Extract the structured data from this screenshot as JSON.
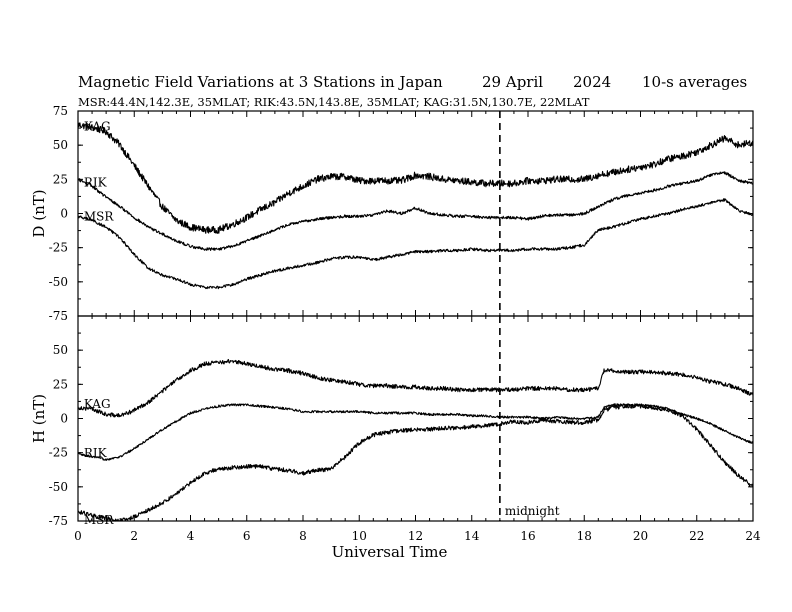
{
  "title": {
    "main": "Magnetic Field Variations at 3 Stations in Japan",
    "date": "29  April",
    "year": "2024",
    "averaging": "10-s averages"
  },
  "subtitle": "MSR:44.4N,142.3E, 35MLAT;  RIK:43.5N,143.8E, 35MLAT;  KAG:31.5N,130.7E, 22MLAT",
  "colors": {
    "line": "#000000",
    "frame": "#000000"
  },
  "chart_data": [
    {
      "type": "line",
      "panel": "top",
      "ylabel": "D (nT)",
      "xlim": [
        0,
        24
      ],
      "ylim": [
        -75,
        75
      ],
      "yticks": [
        "75",
        "50",
        "25",
        "0",
        "-25",
        "-50",
        "-75"
      ],
      "series": [
        {
          "name": "KAG",
          "noise": 2.5,
          "x": [
            0,
            0.5,
            1,
            1.5,
            2,
            2.5,
            3,
            3.5,
            4,
            4.5,
            5,
            5.5,
            6,
            6.5,
            7,
            7.5,
            8,
            8.5,
            9,
            9.5,
            10,
            10.5,
            11,
            11.5,
            12,
            12.5,
            13,
            13.5,
            14,
            14.5,
            15,
            15.5,
            16,
            16.5,
            17,
            17.5,
            18,
            18.5,
            19,
            19.5,
            20,
            20.5,
            21,
            21.5,
            22,
            22.5,
            23,
            23.5,
            24
          ],
          "y": [
            65,
            63,
            60,
            50,
            35,
            20,
            5,
            -5,
            -10,
            -12,
            -12,
            -8,
            -3,
            3,
            8,
            15,
            20,
            25,
            27,
            27,
            24,
            24,
            24,
            24,
            28,
            27,
            25,
            24,
            23,
            22,
            22,
            22,
            24,
            24,
            25,
            25,
            25,
            28,
            30,
            32,
            34,
            36,
            40,
            42,
            45,
            50,
            55,
            50,
            52
          ]
        },
        {
          "name": "RIK",
          "noise": 1.0,
          "x": [
            0,
            0.5,
            1,
            1.5,
            2,
            2.5,
            3,
            3.5,
            4,
            4.5,
            5,
            5.5,
            6,
            6.5,
            7,
            7.5,
            8,
            8.5,
            9,
            9.5,
            10,
            10.5,
            11,
            11.5,
            12,
            12.5,
            13,
            13.5,
            14,
            14.5,
            15,
            15.5,
            16,
            16.5,
            17,
            17.5,
            18,
            18.5,
            19,
            19.5,
            20,
            20.5,
            21,
            21.5,
            22,
            22.5,
            23,
            23.5,
            24
          ],
          "y": [
            25,
            20,
            12,
            5,
            -3,
            -10,
            -15,
            -20,
            -24,
            -26,
            -26,
            -24,
            -20,
            -16,
            -12,
            -8,
            -6,
            -4,
            -3,
            -2,
            -2,
            -1,
            2,
            0,
            4,
            0,
            -1,
            -2,
            -2,
            -3,
            -3,
            -3,
            -4,
            -2,
            -1,
            -1,
            0,
            5,
            10,
            13,
            15,
            17,
            20,
            22,
            24,
            28,
            30,
            24,
            22
          ]
        },
        {
          "name": "MSR",
          "noise": 1.0,
          "x": [
            0,
            0.5,
            1,
            1.5,
            2,
            2.5,
            3,
            3.5,
            4,
            4.5,
            5,
            5.5,
            6,
            6.5,
            7,
            7.5,
            8,
            8.5,
            9,
            9.5,
            10,
            10.5,
            11,
            11.5,
            12,
            12.5,
            13,
            13.5,
            14,
            14.5,
            15,
            15.5,
            16,
            16.5,
            17,
            17.5,
            18,
            18.5,
            19,
            19.5,
            20,
            20.5,
            21,
            21.5,
            22,
            22.5,
            23,
            23.5,
            24
          ],
          "y": [
            -2,
            -5,
            -10,
            -18,
            -30,
            -40,
            -45,
            -48,
            -52,
            -54,
            -54,
            -52,
            -48,
            -45,
            -42,
            -40,
            -38,
            -36,
            -33,
            -32,
            -32,
            -34,
            -32,
            -30,
            -28,
            -28,
            -27,
            -27,
            -26,
            -27,
            -27,
            -27,
            -26,
            -26,
            -26,
            -25,
            -23,
            -12,
            -10,
            -7,
            -4,
            -2,
            0,
            3,
            5,
            8,
            10,
            2,
            -1
          ]
        }
      ]
    },
    {
      "type": "line",
      "panel": "bottom",
      "ylabel": "H (nT)",
      "xlabel": "Universal Time",
      "xlim": [
        0,
        24
      ],
      "ylim": [
        -75,
        75
      ],
      "yticks": [
        "50",
        "25",
        "0",
        "-25",
        "-50",
        "-75"
      ],
      "xticks": [
        "0",
        "2",
        "4",
        "6",
        "8",
        "10",
        "12",
        "14",
        "16",
        "18",
        "20",
        "22",
        "24"
      ],
      "series": [
        {
          "name": "KAG",
          "noise": 1.5,
          "x": [
            0,
            0.5,
            1,
            1.5,
            2,
            2.5,
            3,
            3.5,
            4,
            4.5,
            5,
            5.5,
            6,
            6.5,
            7,
            7.5,
            8,
            8.5,
            9,
            9.5,
            10,
            10.5,
            11,
            11.5,
            12,
            12.5,
            13,
            13.5,
            14,
            14.5,
            15,
            15.5,
            16,
            16.5,
            17,
            17.5,
            18,
            18.5,
            18.7,
            19,
            19.5,
            20,
            20.5,
            21,
            21.5,
            22,
            22.5,
            23,
            23.5,
            24
          ],
          "y": [
            8,
            7,
            3,
            2,
            6,
            12,
            20,
            28,
            35,
            40,
            41,
            42,
            40,
            38,
            36,
            35,
            33,
            30,
            28,
            27,
            25,
            24,
            24,
            23,
            23,
            22,
            22,
            21,
            21,
            21,
            21,
            21,
            22,
            22,
            22,
            21,
            21,
            22,
            35,
            35,
            34,
            34,
            34,
            33,
            32,
            30,
            27,
            25,
            22,
            17
          ]
        },
        {
          "name": "RIK",
          "noise": 0.8,
          "x": [
            0,
            0.5,
            1,
            1.5,
            2,
            2.5,
            3,
            3.5,
            4,
            4.5,
            5,
            5.5,
            6,
            6.5,
            7,
            7.5,
            8,
            8.5,
            9,
            9.5,
            10,
            10.5,
            11,
            11.5,
            12,
            12.5,
            13,
            13.5,
            14,
            14.5,
            15,
            15.5,
            16,
            16.5,
            17,
            17.5,
            18,
            18.5,
            18.7,
            19,
            19.5,
            20,
            20.5,
            21,
            21.5,
            22,
            22.5,
            23,
            23.5,
            24
          ],
          "y": [
            -26,
            -28,
            -30,
            -28,
            -22,
            -15,
            -8,
            -2,
            4,
            7,
            9,
            10,
            10,
            9,
            8,
            7,
            5,
            5,
            5,
            5,
            5,
            4,
            4,
            4,
            4,
            3,
            3,
            3,
            2,
            2,
            1,
            1,
            1,
            0,
            1,
            0,
            0,
            1,
            8,
            10,
            10,
            10,
            9,
            7,
            3,
            0,
            -4,
            -9,
            -14,
            -18
          ]
        },
        {
          "name": "MSR",
          "noise": 1.5,
          "x": [
            0,
            0.5,
            1,
            1.5,
            2,
            2.5,
            3,
            3.5,
            4,
            4.5,
            5,
            5.5,
            6,
            6.5,
            7,
            7.5,
            8,
            8.5,
            9,
            9.5,
            10,
            10.5,
            11,
            11.5,
            12,
            12.5,
            13,
            13.5,
            14,
            14.5,
            15,
            15.5,
            16,
            16.5,
            17,
            17.5,
            18,
            18.5,
            18.7,
            19,
            19.5,
            20,
            20.5,
            21,
            21.5,
            22,
            22.5,
            23,
            23.5,
            24
          ],
          "y": [
            -68,
            -71,
            -73,
            -75,
            -72,
            -67,
            -62,
            -55,
            -47,
            -40,
            -37,
            -36,
            -35,
            -35,
            -37,
            -38,
            -40,
            -38,
            -37,
            -28,
            -18,
            -12,
            -10,
            -9,
            -8,
            -8,
            -7,
            -7,
            -6,
            -5,
            -4,
            -2,
            -3,
            -1,
            -2,
            -3,
            -3,
            -1,
            6,
            8,
            9,
            9,
            8,
            6,
            2,
            -8,
            -20,
            -32,
            -42,
            -50
          ]
        }
      ]
    }
  ],
  "annotations": {
    "midnight_label": "midnight",
    "midnight_x": 15
  }
}
